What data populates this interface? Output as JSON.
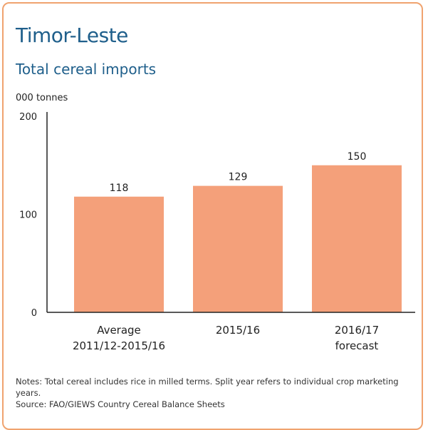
{
  "title": "Timor-Leste",
  "subtitle": "Total cereal imports",
  "notes": "Notes: Total cereal includes rice in milled terms. Split year refers to individual crop marketing years.",
  "source": "Source: FAO/GIEWS Country Cereal Balance Sheets",
  "colors": {
    "bar": "#f4a07a",
    "title": "#1f5f8b",
    "border": "#f0a36f"
  },
  "chart_data": {
    "type": "bar",
    "title": "Total cereal imports",
    "ylabel": "000 tonnes",
    "ylim": [
      0,
      200
    ],
    "yticks": [
      0,
      100,
      200
    ],
    "grid": false,
    "categories": [
      [
        "Average",
        "2011/12-2015/16"
      ],
      [
        "2015/16"
      ],
      [
        "2016/17",
        "forecast"
      ]
    ],
    "values": [
      118,
      129,
      150
    ],
    "data_labels": [
      "118",
      "129",
      "150"
    ]
  }
}
